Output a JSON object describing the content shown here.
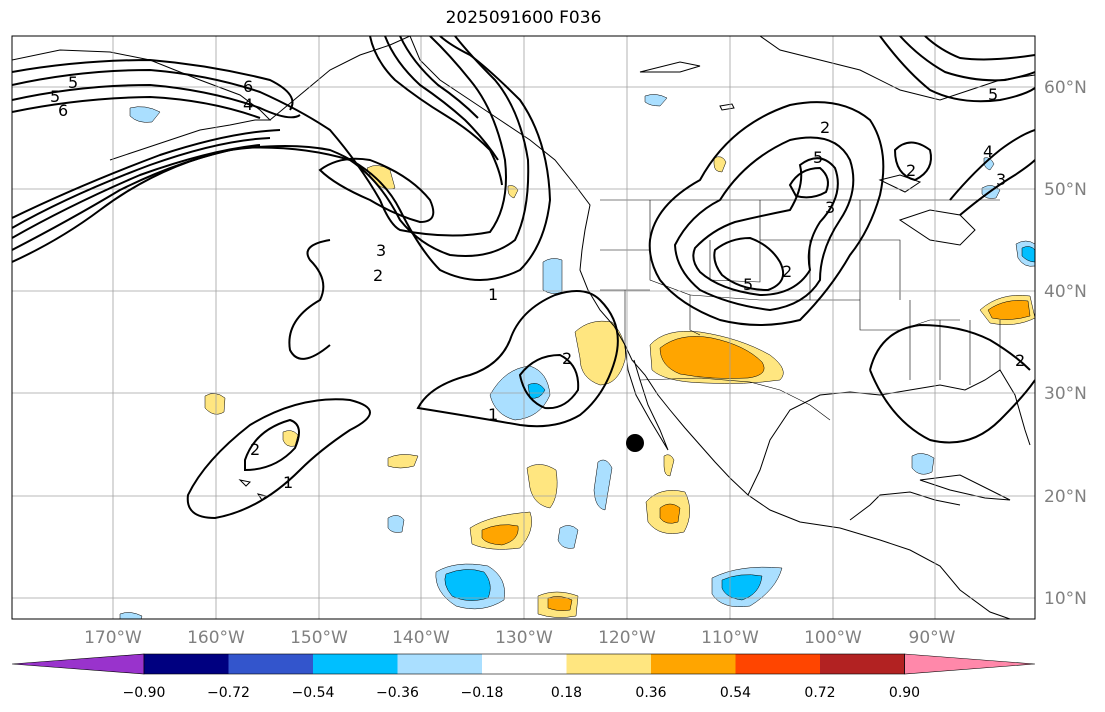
{
  "title": "2025091600 F036",
  "colors": {
    "land_outline": "#000000",
    "grid": "#a0a0a0",
    "contour": "#000000",
    "marker": "#000000",
    "axis_label": "#808080"
  },
  "longitude_labels": [
    "170°W",
    "160°W",
    "150°W",
    "140°W",
    "130°W",
    "120°W",
    "110°W",
    "100°W",
    "90°W"
  ],
  "latitude_labels": [
    "60°N",
    "50°N",
    "40°N",
    "30°N",
    "20°N",
    "10°N"
  ],
  "colorbar": {
    "colors": [
      "#9933cc",
      "#000080",
      "#3355cc",
      "#00bfff",
      "#aadfff",
      "#ffffff",
      "#ffe680",
      "#ffa500",
      "#ff4500",
      "#b22222",
      "#ff88aa"
    ],
    "tick_labels": [
      "−0.90",
      "−0.72",
      "−0.54",
      "−0.36",
      "−0.18",
      "0.18",
      "0.36",
      "0.54",
      "0.72",
      "0.90"
    ]
  },
  "contour_labels": {
    "l1": "5",
    "l2": "6",
    "l3": "5",
    "l4": "6",
    "l5": "4",
    "l6": "3",
    "l7": "2",
    "l8": "1",
    "l9": "2",
    "l10": "1",
    "l11": "2",
    "l12": "1",
    "l13": "2",
    "l14": "5",
    "l15": "3",
    "l16": "5",
    "l17": "2",
    "l18": "4",
    "l19": "3",
    "l20": "5",
    "l21": "2",
    "l22": "2"
  }
}
